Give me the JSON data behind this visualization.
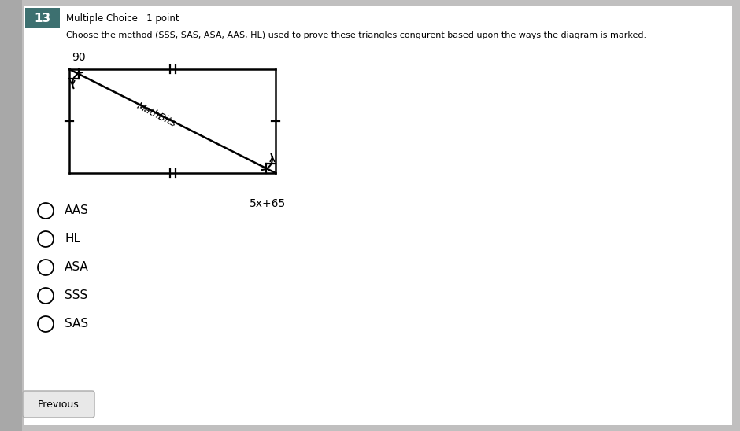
{
  "bg_color": "#c0bfbf",
  "page_bg": "#ffffff",
  "question_number": "13",
  "question_type": "Multiple Choice",
  "question_points": "1 point",
  "question_text": "Choose the method (SSS, SAS, ASA, AAS, HL) used to prove these triangles congurent based upon the ways the diagram is marked.",
  "angle_label_top_left": "90",
  "angle_label_bottom_right": "5x+65",
  "watermark": "MathBits",
  "choices": [
    "AAS",
    "HL",
    "ASA",
    "SSS",
    "SAS"
  ],
  "title_color": "#000000",
  "shape_color": "#000000",
  "badge_color": "#3d7070",
  "sidebar_color": "#a8a8a8"
}
